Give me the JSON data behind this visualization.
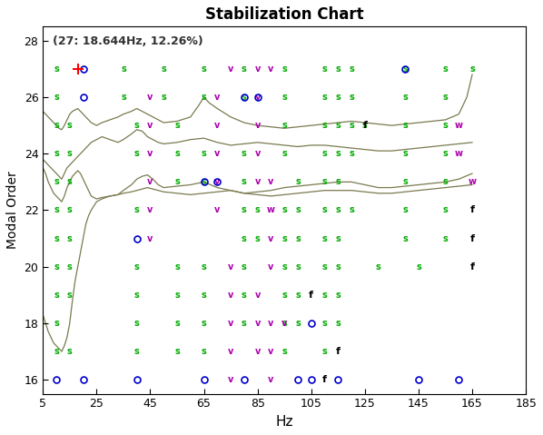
{
  "title": "Stabilization Chart",
  "subtitle": "(27: 18.644Hz, 12.26%)",
  "xlabel": "Hz",
  "ylabel": "Modal Order",
  "xlim": [
    5,
    185
  ],
  "ylim": [
    15.5,
    28.5
  ],
  "yticks": [
    16,
    18,
    20,
    22,
    24,
    26,
    28
  ],
  "xticks": [
    5,
    25,
    45,
    65,
    85,
    105,
    125,
    145,
    165,
    185
  ],
  "bg_color": "#ffffff",
  "curve_color": "#7a7a50",
  "s_color": "#00aa00",
  "v_color": "#aa00aa",
  "f_color": "#000000",
  "o_color": "#0000cc",
  "w_color": "#aa00aa",
  "special_color": "#cc0000",
  "figsize": [
    5.98,
    4.79
  ],
  "dpi": 100
}
